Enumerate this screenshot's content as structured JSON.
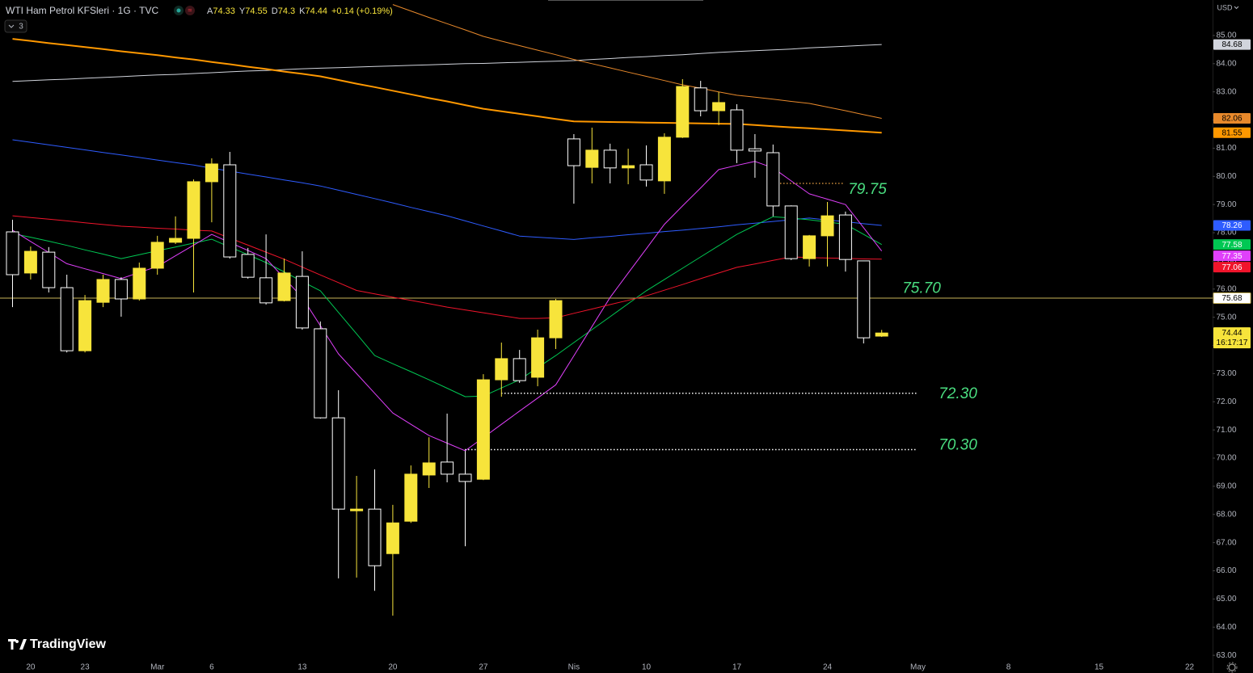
{
  "header": {
    "symbol": "WTI Ham Petrol KFSleri · 1G · TVC",
    "ohlc_letters": [
      "A",
      "Y",
      "D",
      "K"
    ],
    "change": "+0.14 (+0.19%)",
    "indicators_count": 3,
    "currency": "USD"
  },
  "logo": "TradingView",
  "chart_data": {
    "type": "candlestick",
    "categories": [
      null,
      "20",
      null,
      null,
      "23",
      null,
      null,
      null,
      "Mar",
      null,
      null,
      "6",
      null,
      null,
      null,
      null,
      "13",
      null,
      null,
      null,
      null,
      "20",
      null,
      null,
      null,
      null,
      "27",
      null,
      null,
      null,
      null,
      "Nis",
      null,
      null,
      null,
      "10",
      null,
      null,
      null,
      null,
      "17",
      null,
      null,
      null,
      null,
      "24",
      null,
      null,
      null,
      null,
      "May",
      null,
      null,
      null,
      null,
      "8",
      null,
      null,
      null,
      null,
      "15",
      null,
      null,
      null,
      null,
      "22",
      null
    ],
    "open": [
      78.03,
      76.57,
      77.31,
      76.05,
      73.81,
      75.53,
      76.34,
      75.65,
      76.74,
      77.66,
      77.8,
      79.81,
      80.41,
      77.23,
      76.4,
      75.59,
      76.45,
      74.59,
      71.43,
      68.13,
      68.19,
      66.61,
      67.76,
      69.4,
      69.86,
      69.43,
      69.25,
      72.78,
      73.53,
      72.87,
      74.27,
      81.33,
      80.32,
      80.93,
      80.3,
      80.41,
      79.84,
      81.39,
      83.14,
      82.33,
      82.36,
      80.98,
      80.84,
      78.95,
      77.08,
      77.89,
      78.63,
      77.0,
      74.33,
      null,
      null,
      null,
      null,
      null,
      null,
      null,
      null,
      null,
      null,
      null,
      null,
      null,
      null,
      null,
      null,
      null,
      null
    ],
    "high": [
      78.46,
      77.51,
      77.49,
      76.51,
      75.79,
      76.51,
      76.42,
      76.94,
      77.89,
      78.58,
      79.89,
      80.64,
      80.87,
      77.46,
      77.94,
      77.08,
      77.34,
      74.85,
      72.41,
      69.37,
      69.6,
      68.34,
      69.74,
      70.74,
      71.58,
      70.26,
      72.98,
      74.1,
      73.84,
      74.56,
      75.65,
      81.5,
      81.73,
      81.16,
      80.98,
      81.1,
      81.53,
      83.45,
      83.39,
      82.99,
      82.56,
      81.5,
      81.13,
      78.97,
      77.92,
      79.09,
      78.75,
      77.0,
      74.55,
      null,
      null,
      null,
      null,
      null,
      null,
      null,
      null,
      null,
      null,
      null,
      null,
      null,
      null,
      null,
      null,
      null,
      null
    ],
    "low": [
      75.36,
      76.34,
      75.88,
      73.75,
      73.75,
      75.36,
      75.02,
      75.59,
      76.51,
      77.6,
      75.88,
      78.37,
      77.08,
      76.37,
      75.45,
      75.56,
      74.56,
      71.4,
      65.73,
      65.76,
      65.29,
      64.41,
      67.7,
      68.94,
      69.14,
      66.87,
      69.22,
      72.18,
      72.67,
      72.55,
      73.87,
      79.03,
      79.75,
      79.75,
      79.72,
      79.64,
      79.38,
      81.36,
      82.13,
      81.82,
      80.47,
      79.95,
      78.58,
      77.03,
      76.8,
      76.8,
      76.62,
      74.07,
      74.3,
      null,
      null,
      null,
      null,
      null,
      null,
      null,
      null,
      null,
      null,
      null,
      null,
      null,
      null,
      null,
      null,
      null,
      null
    ],
    "close": [
      76.51,
      77.34,
      76.05,
      73.81,
      75.59,
      76.34,
      75.65,
      76.74,
      77.66,
      77.8,
      79.81,
      80.44,
      77.14,
      76.42,
      75.51,
      76.57,
      74.62,
      71.43,
      68.19,
      68.19,
      66.18,
      67.7,
      69.43,
      69.83,
      69.43,
      69.17,
      72.78,
      73.53,
      72.75,
      74.27,
      75.59,
      80.38,
      80.93,
      80.3,
      80.38,
      79.87,
      81.39,
      83.19,
      82.33,
      82.62,
      80.93,
      80.9,
      78.95,
      77.08,
      77.89,
      78.6,
      77.05,
      74.27,
      74.44,
      null,
      null,
      null,
      null,
      null,
      null,
      null,
      null,
      null,
      null,
      null,
      null,
      null,
      null,
      null,
      null,
      null,
      null
    ],
    "up_color": "#f7e43b",
    "down_color": "#ffffff",
    "series": [
      {
        "color": "#d1d4dc",
        "width": 1,
        "values": [
          83.37,
          83.4,
          83.43,
          83.45,
          83.48,
          83.51,
          83.54,
          83.57,
          83.6,
          83.62,
          83.65,
          83.68,
          83.71,
          83.74,
          83.76,
          83.79,
          83.82,
          83.84,
          83.86,
          83.88,
          83.9,
          83.92,
          83.94,
          83.96,
          83.98,
          84.0,
          84.01,
          84.03,
          84.05,
          84.07,
          84.09,
          84.11,
          84.15,
          84.18,
          84.22,
          84.25,
          84.29,
          84.32,
          84.36,
          84.4,
          84.43,
          84.46,
          84.49,
          84.52,
          84.56,
          84.59,
          84.62,
          84.65,
          84.68,
          null,
          null,
          null,
          null,
          null,
          null,
          null,
          null,
          null,
          null,
          null,
          null,
          null,
          null,
          null,
          null,
          null,
          null
        ]
      },
      {
        "color": "#e8892b",
        "width": 1,
        "values": [
          null,
          null,
          null,
          null,
          null,
          null,
          null,
          null,
          null,
          null,
          null,
          null,
          null,
          null,
          null,
          null,
          null,
          null,
          null,
          null,
          null,
          86.1,
          85.87,
          85.64,
          85.42,
          85.2,
          84.97,
          84.8,
          84.64,
          84.48,
          84.32,
          84.15,
          84.0,
          83.85,
          83.7,
          83.55,
          83.4,
          83.25,
          83.13,
          83.0,
          82.88,
          82.81,
          82.74,
          82.66,
          82.59,
          82.46,
          82.33,
          82.19,
          82.06,
          null,
          null,
          null,
          null,
          null,
          null,
          null,
          null,
          null,
          null,
          null,
          null,
          null,
          null,
          null,
          null,
          null,
          null
        ]
      },
      {
        "color": "#ff9800",
        "width": 2,
        "values": [
          84.88,
          84.81,
          84.73,
          84.66,
          84.59,
          84.52,
          84.44,
          84.37,
          84.3,
          84.22,
          84.15,
          84.06,
          83.98,
          83.89,
          83.81,
          83.72,
          83.64,
          83.55,
          83.42,
          83.29,
          83.17,
          83.04,
          82.91,
          82.78,
          82.66,
          82.53,
          82.4,
          82.31,
          82.22,
          82.13,
          82.04,
          81.95,
          81.94,
          81.93,
          81.92,
          81.91,
          81.9,
          81.89,
          81.88,
          81.87,
          81.86,
          81.82,
          81.78,
          81.74,
          81.71,
          81.67,
          81.63,
          81.59,
          81.55,
          null,
          null,
          null,
          null,
          null,
          null,
          null,
          null,
          null,
          null,
          null,
          null,
          null,
          null,
          null,
          null,
          null,
          null
        ]
      },
      {
        "color": "#2e5cff",
        "width": 1,
        "values": [
          81.3,
          81.21,
          81.12,
          81.03,
          80.94,
          80.85,
          80.76,
          80.67,
          80.58,
          80.49,
          80.4,
          80.29,
          80.19,
          80.08,
          79.98,
          79.87,
          79.77,
          79.66,
          79.51,
          79.36,
          79.21,
          79.06,
          78.9,
          78.75,
          78.6,
          78.42,
          78.24,
          78.06,
          77.88,
          77.84,
          77.8,
          77.76,
          77.82,
          77.87,
          77.93,
          77.98,
          78.04,
          78.09,
          78.15,
          78.21,
          78.28,
          78.34,
          78.4,
          78.46,
          78.52,
          78.45,
          78.39,
          78.32,
          78.26,
          null,
          null,
          null,
          null,
          null,
          null,
          null,
          null,
          null,
          null,
          null,
          null,
          null,
          null,
          null,
          null,
          null,
          null
        ]
      },
      {
        "color": "#00c853",
        "width": 1,
        "values": [
          77.97,
          77.84,
          77.7,
          77.55,
          77.39,
          77.24,
          77.08,
          77.22,
          77.36,
          77.49,
          77.63,
          77.77,
          77.49,
          77.22,
          76.94,
          76.61,
          76.27,
          75.94,
          75.17,
          74.41,
          73.64,
          73.35,
          73.07,
          72.78,
          72.48,
          72.18,
          72.2,
          72.49,
          72.78,
          73.21,
          73.64,
          74.1,
          74.56,
          75.02,
          75.48,
          75.94,
          76.34,
          76.74,
          77.14,
          77.54,
          77.94,
          78.26,
          78.57,
          78.52,
          78.46,
          78.38,
          78.3,
          77.94,
          77.58,
          null,
          null,
          null,
          null,
          null,
          null,
          null,
          null,
          null,
          null,
          null,
          null,
          null,
          null,
          null,
          null,
          null,
          null
        ]
      },
      {
        "color": "#e040fb",
        "width": 1,
        "values": [
          78.09,
          77.69,
          77.3,
          76.9,
          76.72,
          76.55,
          76.37,
          76.59,
          76.8,
          77.18,
          77.56,
          77.94,
          77.65,
          77.37,
          77.08,
          76.39,
          75.7,
          74.7,
          73.7,
          73.0,
          72.3,
          71.6,
          71.2,
          70.8,
          70.53,
          70.26,
          70.73,
          71.2,
          71.67,
          72.13,
          72.6,
          73.63,
          74.67,
          75.7,
          76.57,
          77.43,
          78.3,
          78.95,
          79.59,
          80.24,
          80.39,
          80.53,
          80.3,
          79.84,
          79.38,
          79.19,
          79.0,
          78.18,
          77.35,
          null,
          null,
          null,
          null,
          null,
          null,
          null,
          null,
          null,
          null,
          null,
          null,
          null,
          null,
          null,
          null,
          null,
          null
        ]
      },
      {
        "color": "#f0142b",
        "width": 1,
        "values": [
          78.6,
          78.54,
          78.48,
          78.42,
          78.35,
          78.29,
          78.23,
          78.2,
          78.16,
          78.13,
          78.09,
          78.06,
          77.81,
          77.56,
          77.31,
          77.06,
          76.78,
          76.5,
          76.23,
          75.95,
          75.83,
          75.71,
          75.6,
          75.48,
          75.36,
          75.26,
          75.16,
          75.06,
          74.96,
          74.96,
          74.98,
          75.14,
          75.29,
          75.45,
          75.6,
          75.76,
          75.96,
          76.16,
          76.37,
          76.57,
          76.77,
          76.89,
          77.02,
          77.14,
          77.12,
          77.1,
          77.09,
          77.07,
          77.06,
          null,
          null,
          null,
          null,
          null,
          null,
          null,
          null,
          null,
          null,
          null,
          null,
          null,
          null,
          null,
          null,
          null,
          null
        ]
      }
    ],
    "price_line": 75.68,
    "price_line_color": "#c9b458",
    "countdown": "16:17:17",
    "levels": [
      {
        "value": 79.75,
        "label": "79.75"
      },
      {
        "value": 75.7,
        "label": "75.70"
      },
      {
        "value": 72.3,
        "label": "72.30"
      },
      {
        "value": 70.3,
        "label": "70.30"
      }
    ],
    "level_color": "#4ade80",
    "ylim": [
      62.86,
      86.26
    ],
    "yticks": [
      {
        "value": 85,
        "label": "85.00"
      },
      {
        "value": 84,
        "label": "84.00"
      },
      {
        "value": 83,
        "label": "83.00"
      },
      {
        "value": 82,
        "label": "82.00"
      },
      {
        "value": 81,
        "label": "81.00"
      },
      {
        "value": 80,
        "label": "80.00"
      },
      {
        "value": 79,
        "label": "79.00"
      },
      {
        "value": 78,
        "label": "78.00"
      },
      {
        "value": 77,
        "label": "77.00"
      },
      {
        "value": 76,
        "label": "76.00"
      },
      {
        "value": 75,
        "label": "75.00"
      },
      {
        "value": 74,
        "label": "74.00"
      },
      {
        "value": 73,
        "label": "73.00"
      },
      {
        "value": 72,
        "label": "72.00"
      },
      {
        "value": 71,
        "label": "71.00"
      },
      {
        "value": 70,
        "label": "70.00"
      },
      {
        "value": 69,
        "label": "69.00"
      },
      {
        "value": 68,
        "label": "68.00"
      },
      {
        "value": 67,
        "label": "67.00"
      },
      {
        "value": 66,
        "label": "66.00"
      },
      {
        "value": 65,
        "label": "65.00"
      },
      {
        "value": 64,
        "label": "64.00"
      },
      {
        "value": 63,
        "label": "63.00"
      }
    ],
    "grid": false
  }
}
